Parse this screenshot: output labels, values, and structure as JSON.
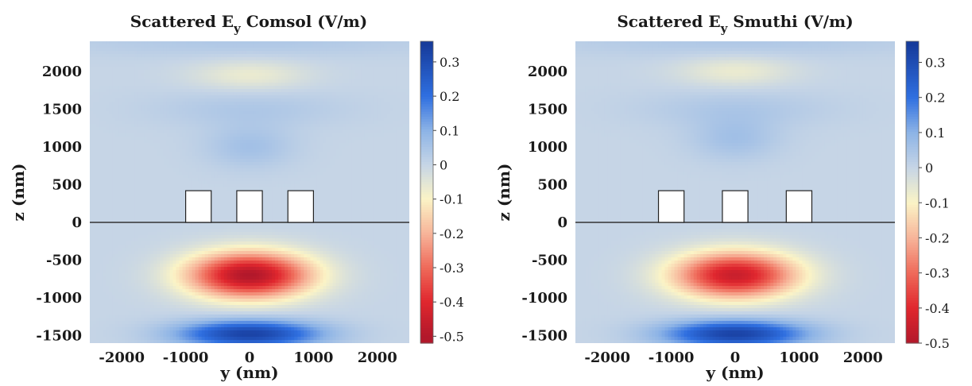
{
  "figure": {
    "colormap": [
      "#b2182b",
      "#e0272e",
      "#ef6a5a",
      "#f7b59a",
      "#fbf4c6",
      "#c6d5e6",
      "#8cb3e6",
      "#2f6fe0",
      "#173c9c"
    ],
    "colormap_stops": [
      -0.5,
      -0.4,
      -0.3,
      -0.2,
      -0.1,
      0.0,
      0.1,
      0.2,
      0.35
    ]
  },
  "chart_data": [
    {
      "type": "heatmap",
      "title_pre": "Scattered E",
      "title_sub": "y",
      "title_post": " Comsol (V/m)",
      "xlabel": "y (nm)",
      "ylabel": "z (nm)",
      "xlim": [
        -2500,
        2500
      ],
      "ylim": [
        -1600,
        2400
      ],
      "xticks": [
        -2000,
        -1000,
        0,
        1000,
        2000
      ],
      "xtick_labels": [
        "-2000",
        "-1000",
        "0",
        "1000",
        "2000"
      ],
      "yticks": [
        2000,
        1500,
        1000,
        500,
        0,
        -500,
        -1000,
        -1500
      ],
      "ytick_labels": [
        "2000",
        "1500",
        "1000",
        "500",
        "0",
        "-500",
        "-1000",
        "-1500"
      ],
      "colorbar": {
        "range": [
          -0.52,
          0.36
        ],
        "ticks": [
          0.3,
          0.2,
          0.1,
          0,
          -0.1,
          -0.2,
          -0.3,
          -0.4,
          -0.5
        ],
        "tick_labels": [
          "0.3",
          "0.2",
          "0.1",
          "0",
          "-0.1",
          "-0.2",
          "-0.3",
          "-0.4",
          "-0.5"
        ]
      },
      "interface_z": 0,
      "blocks": [
        {
          "y_min": -1000,
          "y_max": -600,
          "z_min": 0,
          "z_max": 420
        },
        {
          "y_min": -200,
          "y_max": 200,
          "z_min": 0,
          "z_max": 420
        },
        {
          "y_min": 600,
          "y_max": 1000,
          "z_min": 0,
          "z_max": 420
        }
      ],
      "field_features": [
        {
          "y": 0,
          "z": 1950,
          "value": -0.07,
          "sy": 900,
          "sz": 200
        },
        {
          "y": 0,
          "z": 1500,
          "value": 0.04,
          "sy": 1500,
          "sz": 250
        },
        {
          "y": 0,
          "z": 1000,
          "value": 0.06,
          "sy": 700,
          "sz": 280
        },
        {
          "y": 0,
          "z": -700,
          "value": -0.5,
          "sy": 950,
          "sz": 300
        },
        {
          "y": 0,
          "z": -1480,
          "value": 0.33,
          "sy": 1100,
          "sz": 180
        },
        {
          "y": 0,
          "z": 2400,
          "value": 0.04,
          "sy": 3000,
          "sz": 200
        }
      ]
    },
    {
      "type": "heatmap",
      "title_pre": "Scattered E",
      "title_sub": "y",
      "title_post": " Smuthi (V/m)",
      "xlabel": "y (nm)",
      "ylabel": "z (nm)",
      "xlim": [
        -2500,
        2500
      ],
      "ylim": [
        -1600,
        2400
      ],
      "xticks": [
        -2000,
        -1000,
        0,
        1000,
        2000
      ],
      "xtick_labels": [
        "-2000",
        "-1000",
        "0",
        "1000",
        "2000"
      ],
      "yticks": [
        2000,
        1500,
        1000,
        500,
        0,
        -500,
        -1000,
        -1500
      ],
      "ytick_labels": [
        "2000",
        "1500",
        "1000",
        "500",
        "0",
        "-500",
        "-1000",
        "-1500"
      ],
      "colorbar": {
        "range": [
          -0.5,
          0.36
        ],
        "ticks": [
          0.3,
          0.2,
          0.1,
          0,
          -0.1,
          -0.2,
          -0.3,
          -0.4,
          -0.5
        ],
        "tick_labels": [
          "0.3",
          "0.2",
          "0.1",
          "0",
          "-0.1",
          "-0.2",
          "-0.3",
          "-0.4",
          "-0.5"
        ]
      },
      "interface_z": 0,
      "blocks": [
        {
          "y_min": -1200,
          "y_max": -800,
          "z_min": 0,
          "z_max": 420
        },
        {
          "y_min": -200,
          "y_max": 200,
          "z_min": 0,
          "z_max": 420
        },
        {
          "y_min": 800,
          "y_max": 1200,
          "z_min": 0,
          "z_max": 420
        }
      ],
      "field_features": [
        {
          "y": 0,
          "z": 2000,
          "value": -0.07,
          "sy": 900,
          "sz": 200
        },
        {
          "y": 0,
          "z": 1500,
          "value": 0.04,
          "sy": 1500,
          "sz": 250
        },
        {
          "y": 0,
          "z": 1100,
          "value": 0.06,
          "sy": 700,
          "sz": 280
        },
        {
          "y": 0,
          "z": -700,
          "value": -0.45,
          "sy": 950,
          "sz": 300
        },
        {
          "y": 0,
          "z": -1480,
          "value": 0.33,
          "sy": 1100,
          "sz": 180
        },
        {
          "y": 0,
          "z": 2400,
          "value": 0.04,
          "sy": 3000,
          "sz": 200
        }
      ]
    }
  ]
}
